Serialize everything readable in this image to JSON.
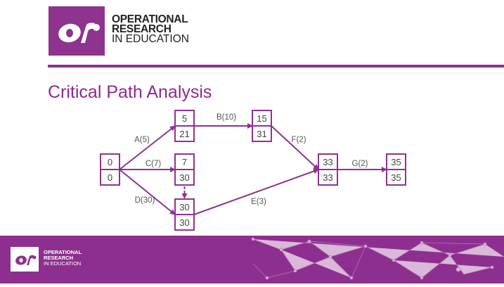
{
  "logo": {
    "mark": "or",
    "line1": "OPERATIONAL",
    "line2": "RESEARCH",
    "line3": "IN EDUCATION"
  },
  "title": "Critical Path Analysis",
  "colors": {
    "brand": "#8e338e",
    "text": "#444444"
  },
  "nodes": [
    {
      "id": "start",
      "earliest": "0",
      "latest": "0"
    },
    {
      "id": "n1",
      "earliest": "5",
      "latest": "21"
    },
    {
      "id": "n2",
      "earliest": "15",
      "latest": "31"
    },
    {
      "id": "n3",
      "earliest": "7",
      "latest": "30"
    },
    {
      "id": "n4",
      "earliest": "30",
      "latest": "30"
    },
    {
      "id": "n5",
      "earliest": "33",
      "latest": "33"
    },
    {
      "id": "end",
      "earliest": "35",
      "latest": "35"
    }
  ],
  "activities": [
    {
      "label": "A(5)",
      "from": "start",
      "to": "n1"
    },
    {
      "label": "B(10)",
      "from": "n1",
      "to": "n2"
    },
    {
      "label": "C(7)",
      "from": "start",
      "to": "n3"
    },
    {
      "label": "D(30)",
      "from": "start",
      "to": "n4"
    },
    {
      "label": "E(3)",
      "from": "n4",
      "to": "n5"
    },
    {
      "label": "F(2)",
      "from": "n2",
      "to": "n5"
    },
    {
      "label": "G(2)",
      "from": "n5",
      "to": "end"
    },
    {
      "label": "",
      "from": "n3",
      "to": "n4",
      "dummy": true
    }
  ],
  "footer_logo": {
    "mark": "or",
    "line1": "OPERATIONAL",
    "line2": "RESEARCH",
    "line3": "IN EDUCATION"
  }
}
